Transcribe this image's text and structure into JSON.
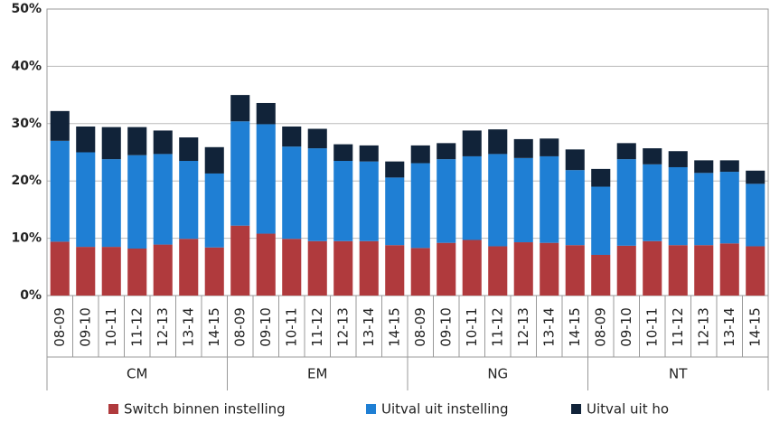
{
  "chart_data": {
    "type": "stacked_bar",
    "categories": [
      "08-09",
      "09-10",
      "10-11",
      "11-12",
      "12-13",
      "13-14",
      "14-15",
      "08-09",
      "09-10",
      "10-11",
      "11-12",
      "12-13",
      "13-14",
      "14-15",
      "08-09",
      "09-10",
      "10-11",
      "11-12",
      "12-13",
      "13-14",
      "14-15",
      "08-09",
      "09-10",
      "10-11",
      "11-12",
      "12-13",
      "13-14",
      "14-15"
    ],
    "groups": [
      "CM",
      "EM",
      "NG",
      "NT"
    ],
    "series": [
      {
        "name": "Switch binnen instelling",
        "color": "#b03a3d",
        "values": [
          9.4,
          8.5,
          8.5,
          8.2,
          8.9,
          9.9,
          8.4,
          12.2,
          10.8,
          9.9,
          9.5,
          9.5,
          9.5,
          8.8,
          8.3,
          9.2,
          9.7,
          8.6,
          9.3,
          9.2,
          8.8,
          7.1,
          8.7,
          9.5,
          8.8,
          8.8,
          9.1,
          8.6
        ]
      },
      {
        "name": "Uitval uit instelling",
        "color": "#1f7fd4",
        "values": [
          17.6,
          16.5,
          15.3,
          16.3,
          15.8,
          13.6,
          12.9,
          18.2,
          19.1,
          16.1,
          16.2,
          14.0,
          13.9,
          11.8,
          14.8,
          14.6,
          14.6,
          16.1,
          14.7,
          15.1,
          13.1,
          11.9,
          15.1,
          13.4,
          13.6,
          12.6,
          12.5,
          10.9
        ]
      },
      {
        "name": "Uitval uit ho",
        "color": "#112339",
        "values": [
          5.2,
          4.5,
          5.6,
          4.9,
          4.1,
          4.1,
          4.6,
          4.6,
          3.7,
          3.5,
          3.4,
          2.9,
          2.8,
          2.8,
          3.1,
          2.8,
          4.5,
          4.3,
          3.3,
          3.1,
          3.6,
          3.1,
          2.8,
          2.8,
          2.8,
          2.2,
          2.0,
          2.3
        ]
      }
    ],
    "ylim": [
      0,
      50
    ],
    "yticks": [
      {
        "value": 0,
        "label": "0%"
      },
      {
        "value": 10,
        "label": "10%"
      },
      {
        "value": 20,
        "label": "20%"
      },
      {
        "value": 30,
        "label": "30%"
      },
      {
        "value": 40,
        "label": "40%"
      },
      {
        "value": 50,
        "label": "50%"
      }
    ],
    "grid": true
  }
}
